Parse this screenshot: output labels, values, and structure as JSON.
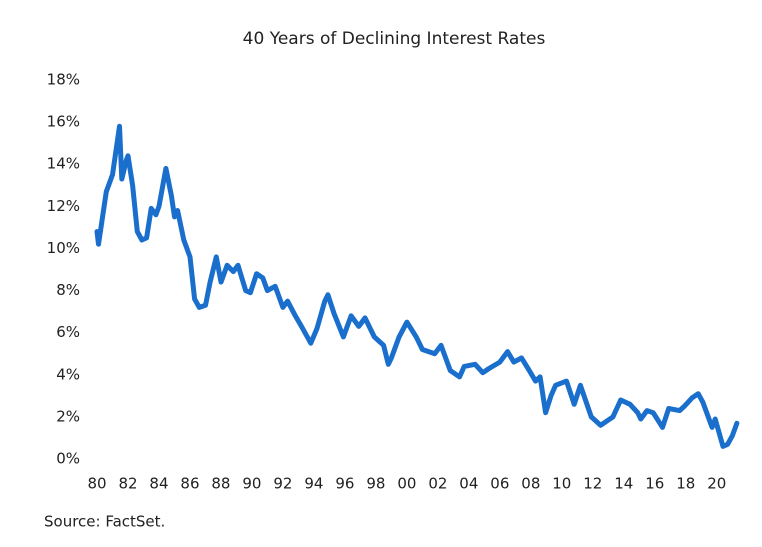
{
  "chart_data": {
    "type": "line",
    "title": "40 Years of Declining Interest Rates",
    "source": "Source: FactSet.",
    "color": "#1a6fcc",
    "grid": false,
    "xlim": [
      1980,
      2021.5
    ],
    "ylim": [
      0,
      18
    ],
    "xticks": [
      {
        "value": 1980,
        "label": "80"
      },
      {
        "value": 1982,
        "label": "82"
      },
      {
        "value": 1984,
        "label": "84"
      },
      {
        "value": 1986,
        "label": "86"
      },
      {
        "value": 1988,
        "label": "88"
      },
      {
        "value": 1990,
        "label": "90"
      },
      {
        "value": 1992,
        "label": "92"
      },
      {
        "value": 1994,
        "label": "94"
      },
      {
        "value": 1996,
        "label": "96"
      },
      {
        "value": 1998,
        "label": "98"
      },
      {
        "value": 2000,
        "label": "00"
      },
      {
        "value": 2002,
        "label": "02"
      },
      {
        "value": 2004,
        "label": "04"
      },
      {
        "value": 2006,
        "label": "06"
      },
      {
        "value": 2008,
        "label": "08"
      },
      {
        "value": 2010,
        "label": "10"
      },
      {
        "value": 2012,
        "label": "12"
      },
      {
        "value": 2014,
        "label": "14"
      },
      {
        "value": 2016,
        "label": "16"
      },
      {
        "value": 2018,
        "label": "18"
      },
      {
        "value": 2020,
        "label": "20"
      }
    ],
    "yticks": [
      {
        "value": 0,
        "label": "0%"
      },
      {
        "value": 2,
        "label": "2%"
      },
      {
        "value": 4,
        "label": "4%"
      },
      {
        "value": 6,
        "label": "6%"
      },
      {
        "value": 8,
        "label": "8%"
      },
      {
        "value": 10,
        "label": "10%"
      },
      {
        "value": 12,
        "label": "12%"
      },
      {
        "value": 14,
        "label": "14%"
      },
      {
        "value": 16,
        "label": "16%"
      },
      {
        "value": 18,
        "label": "18%"
      }
    ],
    "x": [
      1980.0,
      1980.1,
      1980.6,
      1981.0,
      1981.45,
      1981.6,
      1981.9,
      1982.0,
      1982.3,
      1982.6,
      1982.9,
      1983.2,
      1983.5,
      1983.8,
      1984.0,
      1984.45,
      1984.8,
      1985.0,
      1985.2,
      1985.6,
      1986.0,
      1986.3,
      1986.6,
      1987.0,
      1987.3,
      1987.7,
      1988.0,
      1988.4,
      1988.8,
      1989.1,
      1989.6,
      1989.9,
      1990.3,
      1990.7,
      1991.0,
      1991.5,
      1992.0,
      1992.3,
      1992.8,
      1993.2,
      1993.8,
      1994.2,
      1994.7,
      1994.9,
      1995.3,
      1995.9,
      1996.4,
      1996.9,
      1997.3,
      1997.9,
      1998.5,
      1998.8,
      1999.0,
      1999.5,
      2000.0,
      2000.6,
      2001.0,
      2001.8,
      2002.2,
      2002.8,
      2003.4,
      2003.7,
      2004.4,
      2004.9,
      2005.3,
      2006.0,
      2006.5,
      2006.9,
      2007.4,
      2007.9,
      2008.3,
      2008.6,
      2008.95,
      2009.3,
      2009.6,
      2010.3,
      2010.8,
      2011.2,
      2011.9,
      2012.5,
      2012.9,
      2013.3,
      2013.8,
      2014.4,
      2014.9,
      2015.1,
      2015.5,
      2015.9,
      2016.5,
      2016.9,
      2017.6,
      2017.9,
      2018.4,
      2018.8,
      2019.1,
      2019.7,
      2019.9,
      2020.4,
      2020.7,
      2021.0,
      2021.3
    ],
    "values": [
      10.8,
      10.2,
      12.7,
      13.5,
      15.8,
      13.3,
      14.2,
      14.4,
      13.0,
      10.8,
      10.4,
      10.5,
      11.9,
      11.6,
      12.0,
      13.8,
      12.5,
      11.5,
      11.8,
      10.4,
      9.6,
      7.6,
      7.2,
      7.3,
      8.4,
      9.6,
      8.4,
      9.2,
      8.9,
      9.2,
      8.0,
      7.9,
      8.8,
      8.6,
      8.0,
      8.2,
      7.2,
      7.5,
      6.8,
      6.3,
      5.5,
      6.2,
      7.5,
      7.8,
      6.9,
      5.8,
      6.8,
      6.3,
      6.7,
      5.8,
      5.4,
      4.5,
      4.8,
      5.8,
      6.5,
      5.8,
      5.2,
      5.0,
      5.4,
      4.2,
      3.9,
      4.4,
      4.5,
      4.1,
      4.3,
      4.6,
      5.1,
      4.6,
      4.8,
      4.2,
      3.7,
      3.9,
      2.2,
      3.0,
      3.5,
      3.7,
      2.6,
      3.5,
      2.0,
      1.6,
      1.8,
      2.0,
      2.8,
      2.6,
      2.2,
      1.9,
      2.3,
      2.2,
      1.5,
      2.4,
      2.3,
      2.5,
      2.9,
      3.1,
      2.7,
      1.5,
      1.9,
      0.6,
      0.7,
      1.1,
      1.7
    ]
  }
}
